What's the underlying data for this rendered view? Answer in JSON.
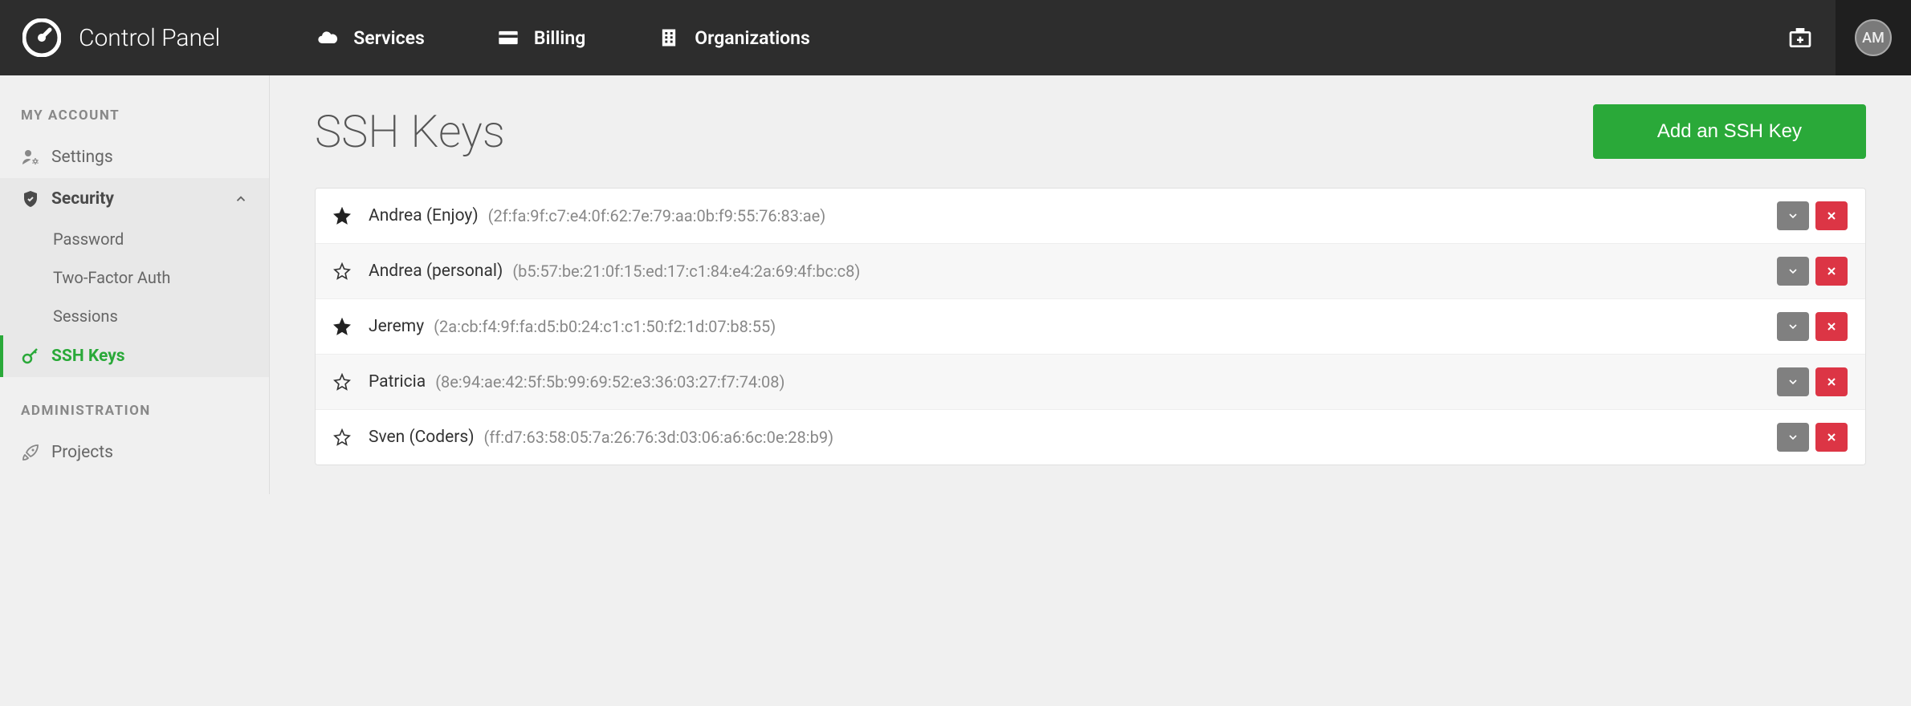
{
  "header": {
    "brand": "Control Panel",
    "nav": [
      {
        "label": "Services",
        "icon": "cloud"
      },
      {
        "label": "Billing",
        "icon": "card"
      },
      {
        "label": "Organizations",
        "icon": "building"
      }
    ],
    "avatar_initials": "AM"
  },
  "sidebar": {
    "sections": [
      {
        "heading": "MY ACCOUNT",
        "items": [
          {
            "label": "Settings",
            "icon": "user-gear",
            "state": "normal"
          },
          {
            "label": "Security",
            "icon": "shield",
            "state": "expanded",
            "children": [
              {
                "label": "Password"
              },
              {
                "label": "Two-Factor Auth"
              },
              {
                "label": "Sessions"
              }
            ]
          },
          {
            "label": "SSH Keys",
            "icon": "key",
            "state": "active"
          }
        ]
      },
      {
        "heading": "ADMINISTRATION",
        "items": [
          {
            "label": "Projects",
            "icon": "rocket",
            "state": "normal"
          }
        ]
      }
    ]
  },
  "page": {
    "title": "SSH Keys",
    "add_button": "Add an SSH Key"
  },
  "keys": [
    {
      "starred": true,
      "name": "Andrea (Enjoy)",
      "fingerprint": "(2f:fa:9f:c7:e4:0f:62:7e:79:aa:0b:f9:55:76:83:ae)"
    },
    {
      "starred": false,
      "name": "Andrea (personal)",
      "fingerprint": "(b5:57:be:21:0f:15:ed:17:c1:84:e4:2a:69:4f:bc:c8)"
    },
    {
      "starred": true,
      "name": "Jeremy",
      "fingerprint": "(2a:cb:f4:9f:fa:d5:b0:24:c1:c1:50:f2:1d:07:b8:55)"
    },
    {
      "starred": false,
      "name": "Patricia",
      "fingerprint": "(8e:94:ae:42:5f:5b:99:69:52:e3:36:03:27:f7:74:08)"
    },
    {
      "starred": false,
      "name": "Sven (Coders)",
      "fingerprint": "(ff:d7:63:58:05:7a:26:76:3d:03:06:a6:6c:0e:28:b9)"
    }
  ],
  "colors": {
    "header_bg": "#2d2d2d",
    "accent_green": "#2aa939",
    "danger_red": "#dc3545",
    "gray_btn": "#808080",
    "page_bg": "#f0f0f0"
  }
}
